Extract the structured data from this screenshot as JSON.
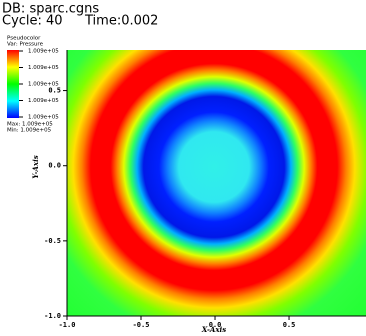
{
  "header": {
    "db": "DB: sparc.cgns",
    "cycle": "Cycle: 40",
    "time": "Time:0.002"
  },
  "chart_data": {
    "type": "heatmap",
    "legend": {
      "plot": "Pseudocolor",
      "var": "Var: Pressure",
      "labels": [
        "1.009e+05",
        "1.009e+05",
        "1.009e+05",
        "1.009e+05",
        "1.009e+05"
      ],
      "max": "Max: 1.009e+05",
      "min": "Min: 1.009e+05"
    },
    "xlabel": "X-Axis",
    "ylabel": "Y-Axis",
    "xlim": [
      -1,
      1.02
    ],
    "ylim": [
      -1,
      0.77
    ],
    "xticks": [
      {
        "value": -1,
        "label": "-1.0"
      },
      {
        "value": -0.5,
        "label": "-0.5"
      },
      {
        "value": 0,
        "label": "0.0"
      },
      {
        "value": 0.5,
        "label": "0.5"
      }
    ],
    "yticks": [
      {
        "value": -1,
        "label": "-1.0"
      },
      {
        "value": -0.5,
        "label": "-0.5"
      },
      {
        "value": 0,
        "label": "0.0"
      },
      {
        "value": 0.5,
        "label": "0.5"
      }
    ]
  }
}
